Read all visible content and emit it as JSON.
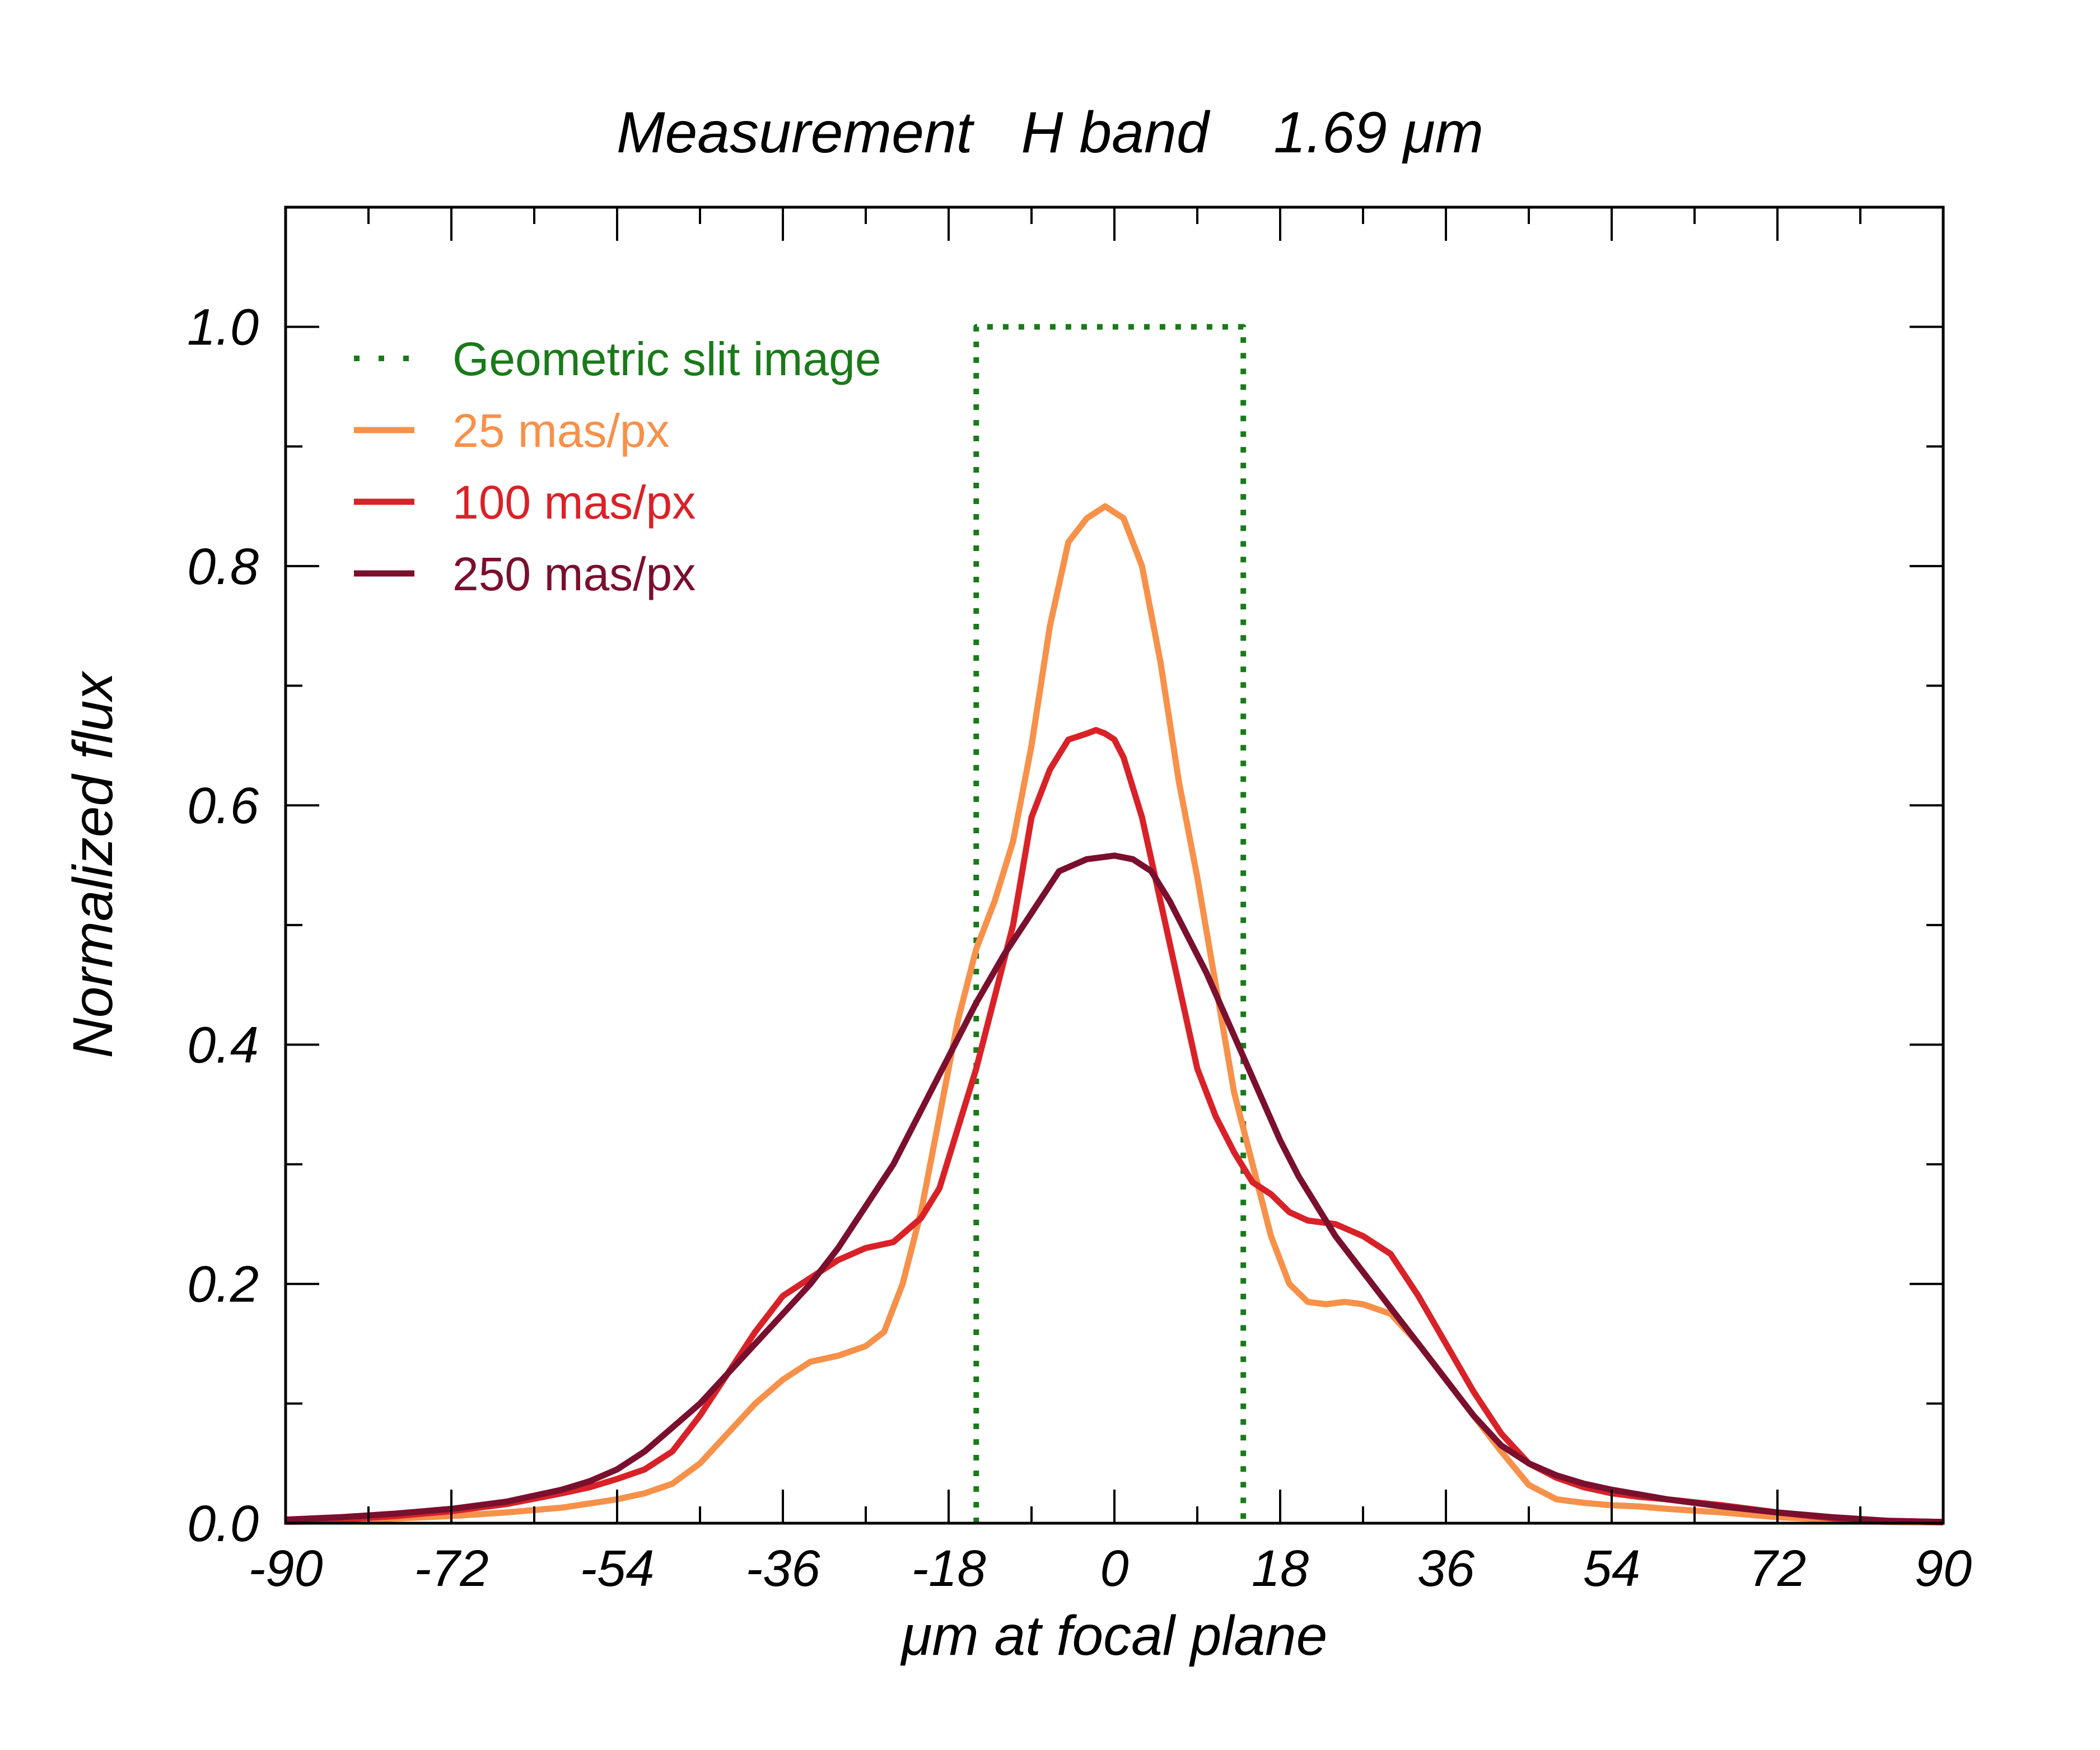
{
  "chart_data": {
    "type": "line",
    "title": "Measurement   H band    1.69 μm",
    "xlabel": "μm at focal plane",
    "ylabel": "Normalized flux",
    "xlim": [
      -90,
      90
    ],
    "ylim": [
      0,
      1.1
    ],
    "xticks": [
      -90,
      -72,
      -54,
      -36,
      -18,
      0,
      18,
      36,
      54,
      72,
      90
    ],
    "xtick_labels": [
      "-90",
      "-72",
      "-54",
      "-36",
      "-18",
      "0",
      "18",
      "36",
      "54",
      "72",
      "90"
    ],
    "xminor_step": 9,
    "yticks": [
      0,
      0.2,
      0.4,
      0.6,
      0.8,
      1.0
    ],
    "ytick_labels": [
      "0.0",
      "0.2",
      "0.4",
      "0.6",
      "0.8",
      "1.0"
    ],
    "yminor_step": 0.1,
    "grid": false,
    "legend_position": "top-left",
    "series": [
      {
        "name": "Geometric slit image",
        "color": "#1a7a1a",
        "style": "dotted",
        "x": [
          -15,
          -15,
          14,
          14
        ],
        "y": [
          0,
          1.0,
          1.0,
          0
        ]
      },
      {
        "name": "25 mas/px",
        "color": "#f7914a",
        "style": "solid",
        "x": [
          -90,
          -84,
          -78,
          -72,
          -66,
          -60,
          -54,
          -51,
          -48,
          -45,
          -42,
          -39,
          -36,
          -33,
          -30,
          -27,
          -25,
          -23,
          -21,
          -19,
          -17,
          -15,
          -13,
          -11,
          -9,
          -7,
          -5,
          -3,
          -1,
          0,
          1,
          3,
          5,
          7,
          9,
          11,
          13,
          15,
          17,
          19,
          21,
          23,
          25,
          27,
          30,
          33,
          36,
          39,
          42,
          45,
          48,
          51,
          54,
          57,
          60,
          66,
          72,
          78,
          84,
          90
        ],
        "y": [
          0.001,
          0.002,
          0.004,
          0.006,
          0.009,
          0.013,
          0.02,
          0.025,
          0.033,
          0.05,
          0.075,
          0.1,
          0.12,
          0.135,
          0.14,
          0.148,
          0.16,
          0.2,
          0.26,
          0.34,
          0.42,
          0.48,
          0.52,
          0.57,
          0.65,
          0.75,
          0.82,
          0.84,
          0.85,
          0.845,
          0.84,
          0.8,
          0.72,
          0.62,
          0.54,
          0.45,
          0.36,
          0.3,
          0.24,
          0.2,
          0.185,
          0.183,
          0.185,
          0.183,
          0.175,
          0.15,
          0.12,
          0.09,
          0.06,
          0.032,
          0.02,
          0.017,
          0.015,
          0.014,
          0.012,
          0.009,
          0.005,
          0.003,
          0.001,
          0.0005
        ]
      },
      {
        "name": "100 mas/px",
        "color": "#d92228",
        "style": "solid",
        "x": [
          -90,
          -84,
          -78,
          -72,
          -66,
          -60,
          -57,
          -54,
          -51,
          -48,
          -45,
          -42,
          -39,
          -36,
          -33,
          -30,
          -27,
          -24,
          -21,
          -19,
          -17,
          -15,
          -13,
          -11,
          -9,
          -7,
          -5,
          -3,
          -2,
          -1,
          0,
          1,
          3,
          5,
          7,
          9,
          11,
          13,
          15,
          17,
          19,
          21,
          24,
          27,
          30,
          33,
          36,
          39,
          42,
          45,
          48,
          51,
          54,
          57,
          60,
          66,
          72,
          78,
          84,
          90
        ],
        "y": [
          0.002,
          0.003,
          0.006,
          0.01,
          0.016,
          0.025,
          0.03,
          0.037,
          0.045,
          0.06,
          0.09,
          0.125,
          0.16,
          0.19,
          0.205,
          0.22,
          0.23,
          0.235,
          0.255,
          0.28,
          0.33,
          0.38,
          0.44,
          0.5,
          0.59,
          0.63,
          0.655,
          0.66,
          0.663,
          0.66,
          0.655,
          0.64,
          0.59,
          0.52,
          0.45,
          0.38,
          0.34,
          0.31,
          0.285,
          0.275,
          0.26,
          0.253,
          0.25,
          0.24,
          0.225,
          0.19,
          0.15,
          0.11,
          0.075,
          0.05,
          0.038,
          0.03,
          0.025,
          0.022,
          0.02,
          0.015,
          0.009,
          0.004,
          0.002,
          0.001
        ]
      },
      {
        "name": "250 mas/px",
        "color": "#7a0f2e",
        "style": "solid",
        "x": [
          -90,
          -84,
          -78,
          -72,
          -66,
          -60,
          -57,
          -54,
          -51,
          -48,
          -45,
          -42,
          -39,
          -36,
          -33,
          -30,
          -27,
          -24,
          -21,
          -18,
          -15,
          -12,
          -9,
          -6,
          -3,
          0,
          2,
          4,
          6,
          8,
          10,
          12,
          14,
          16,
          18,
          20,
          22,
          24,
          27,
          30,
          33,
          36,
          39,
          42,
          45,
          48,
          51,
          54,
          57,
          60,
          66,
          72,
          78,
          84,
          90
        ],
        "y": [
          0.003,
          0.005,
          0.008,
          0.012,
          0.018,
          0.028,
          0.035,
          0.045,
          0.06,
          0.08,
          0.1,
          0.125,
          0.15,
          0.175,
          0.2,
          0.23,
          0.265,
          0.3,
          0.345,
          0.39,
          0.435,
          0.475,
          0.51,
          0.545,
          0.555,
          0.558,
          0.555,
          0.545,
          0.52,
          0.49,
          0.46,
          0.425,
          0.39,
          0.355,
          0.32,
          0.29,
          0.265,
          0.24,
          0.21,
          0.18,
          0.15,
          0.12,
          0.09,
          0.065,
          0.05,
          0.04,
          0.033,
          0.028,
          0.024,
          0.02,
          0.014,
          0.009,
          0.005,
          0.002,
          0.001
        ]
      }
    ]
  }
}
